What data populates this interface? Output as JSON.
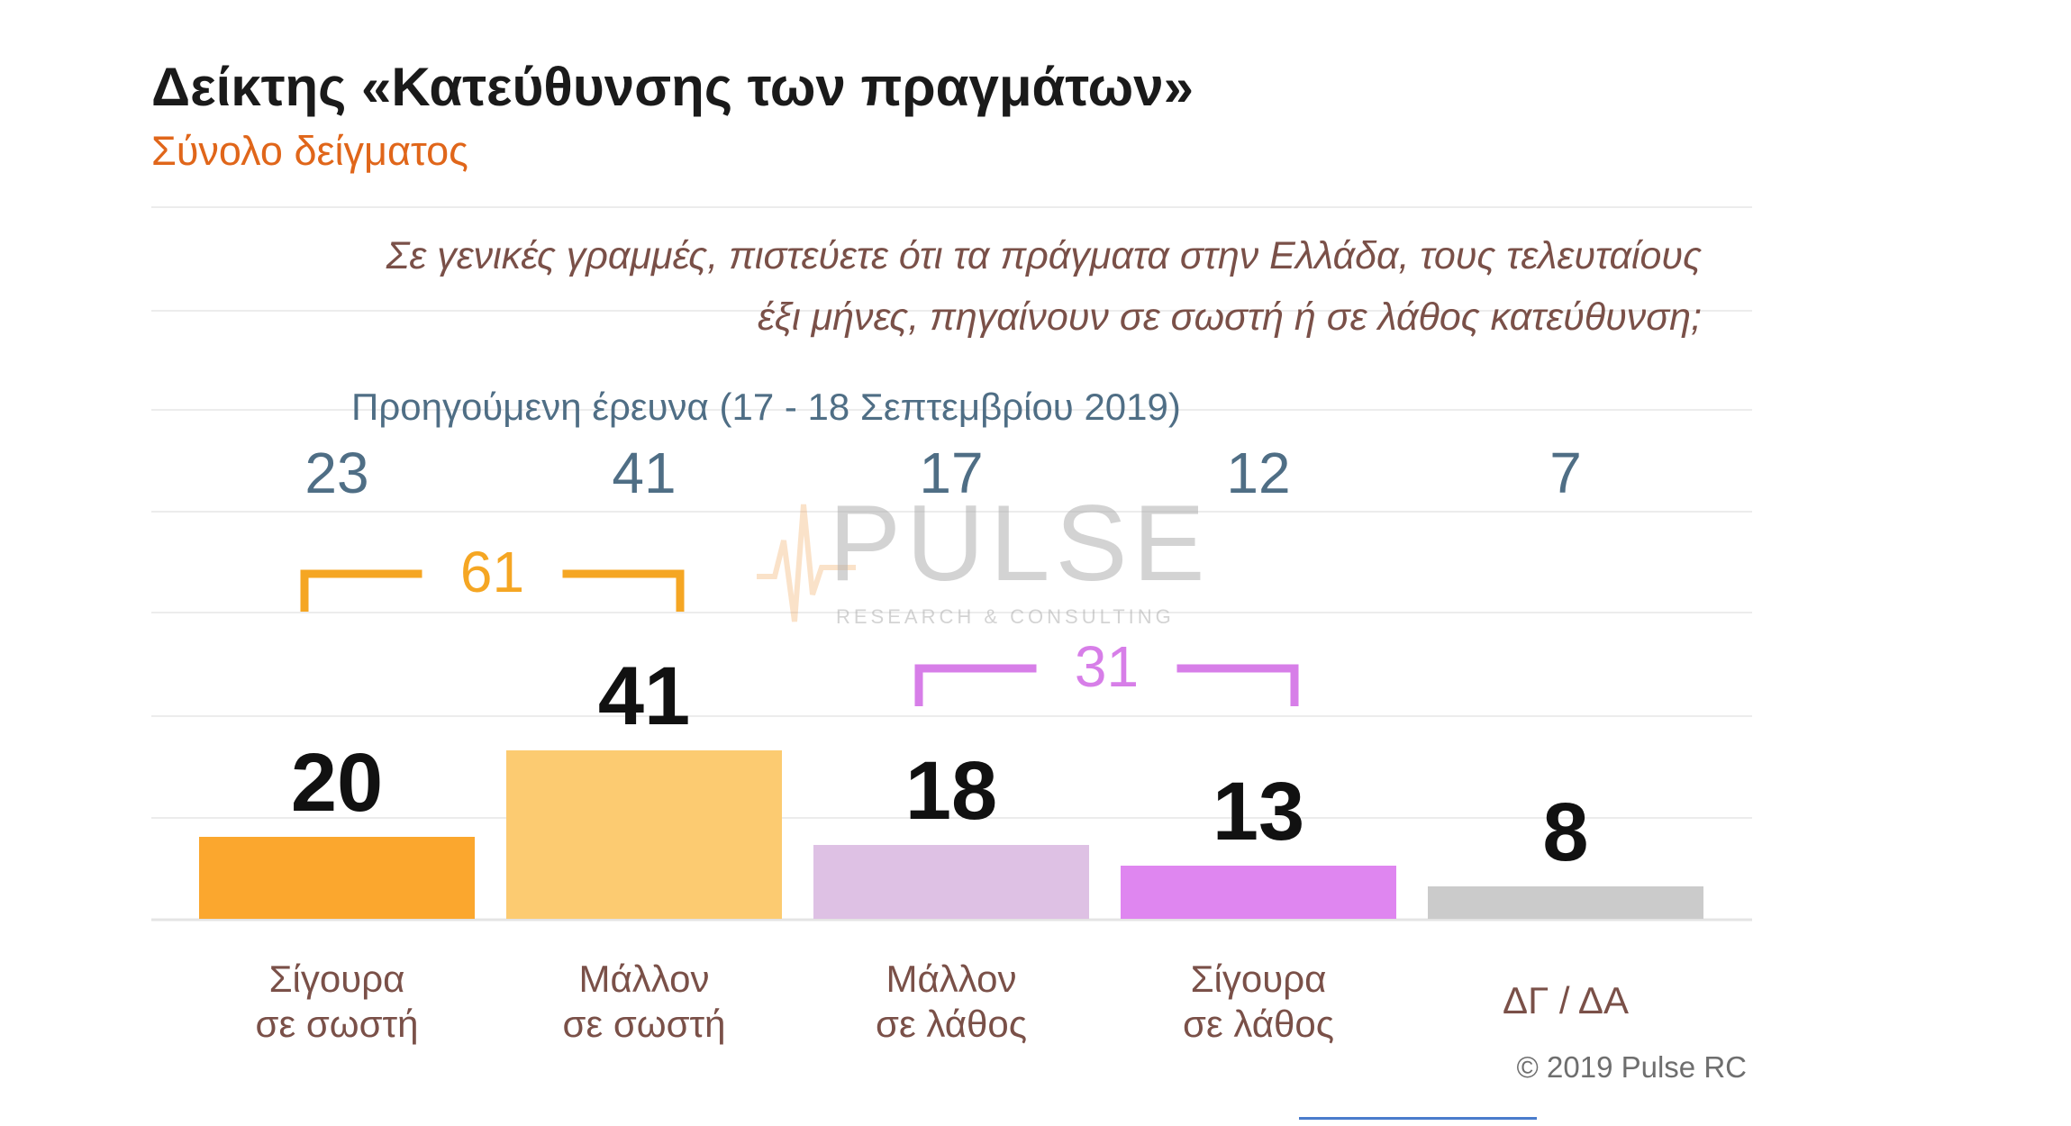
{
  "chart_data": {
    "type": "bar",
    "title": "Δείκτης «Κατεύθυνσης των πραγμάτων»",
    "subtitle": "Σύνολο δείγματος",
    "question": [
      "Σε γενικές γραμμές, πιστεύετε ότι τα πράγματα στην Ελλάδα, τους τελευταίους",
      "έξι μήνες, πηγαίνουν σε σωστή ή σε λάθος κατεύθυνση;"
    ],
    "categories": [
      [
        "Σίγουρα",
        "σε σωστή"
      ],
      [
        "Μάλλον",
        "σε σωστή"
      ],
      [
        "Μάλλον",
        "σε λάθος"
      ],
      [
        "Σίγουρα",
        "σε λάθος"
      ],
      [
        "ΔΓ / ΔΑ"
      ]
    ],
    "values": [
      20,
      41,
      18,
      13,
      8
    ],
    "previous_survey": {
      "label": "Προηγούμενη έρευνα  (17 - 18  Σεπτεμβρίου  2019)",
      "values": [
        "23",
        "41",
        "17",
        "12",
        "7"
      ]
    },
    "groups": [
      {
        "total": "61",
        "from": 0,
        "to": 1,
        "color": "#f5a623"
      },
      {
        "total": "31",
        "from": 2,
        "to": 3,
        "color": "#d77ee8"
      }
    ],
    "colors": [
      "#fba72e",
      "#fccb71",
      "#dec1e4",
      "#df86f0",
      "#cbcbcb"
    ],
    "grid": true,
    "legend": "none"
  },
  "watermark": {
    "word": "PULSE",
    "tagline": "RESEARCH & CONSULTING"
  },
  "copyright": "© 2019 Pulse RC"
}
